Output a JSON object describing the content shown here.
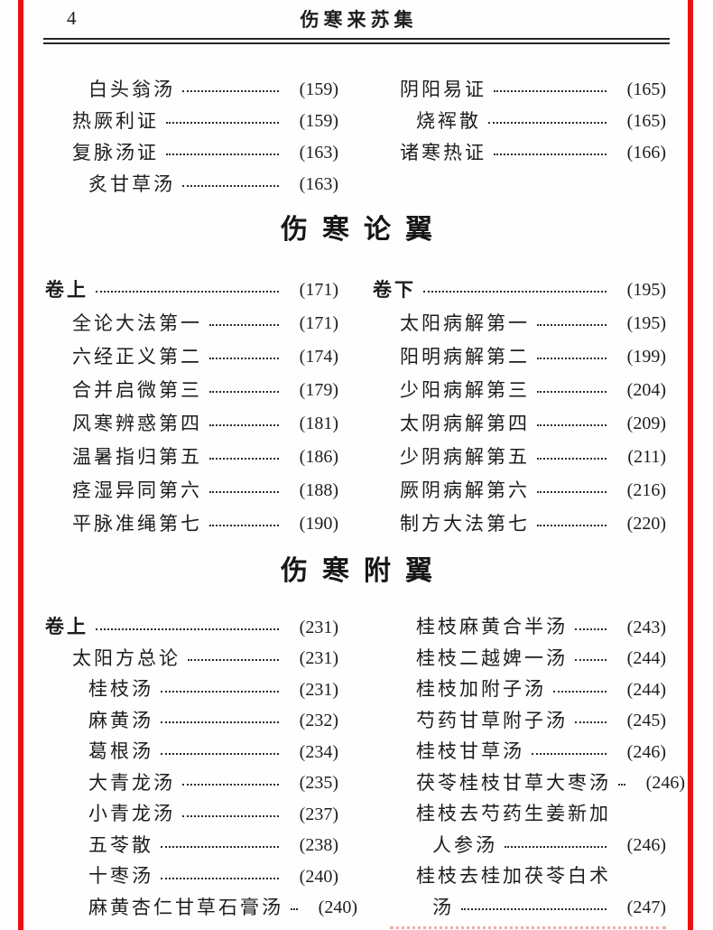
{
  "header": {
    "page_number": "4",
    "book_title": "伤寒来苏集"
  },
  "colors": {
    "binding_bar_red": "#ec1010",
    "text": "#1d1d1d",
    "rule": "#262626"
  },
  "sections": [
    {
      "heading": "",
      "left": [
        {
          "text": "白头翁汤",
          "page": "(159)"
        },
        {
          "text": "热厥利证",
          "page": "(159)"
        },
        {
          "text": "复脉汤证",
          "page": "(163)"
        },
        {
          "text": "炙甘草汤",
          "page": "(163)"
        }
      ],
      "right": [
        {
          "text": "阴阳易证",
          "page": "(165)"
        },
        {
          "text": "烧裈散",
          "page": "(165)"
        },
        {
          "text": "诸寒热证",
          "page": "(166)"
        }
      ]
    },
    {
      "heading": "伤寒论翼",
      "left": [
        {
          "text": "卷上",
          "page": "(171)"
        },
        {
          "text": "全论大法第一",
          "page": "(171)"
        },
        {
          "text": "六经正义第二",
          "page": "(174)"
        },
        {
          "text": "合并启微第三",
          "page": "(179)"
        },
        {
          "text": "风寒辨惑第四",
          "page": "(181)"
        },
        {
          "text": "温暑指归第五",
          "page": "(186)"
        },
        {
          "text": "痉湿异同第六",
          "page": "(188)"
        },
        {
          "text": "平脉准绳第七",
          "page": "(190)"
        }
      ],
      "right": [
        {
          "text": "卷下",
          "page": "(195)"
        },
        {
          "text": "太阳病解第一",
          "page": "(195)"
        },
        {
          "text": "阳明病解第二",
          "page": "(199)"
        },
        {
          "text": "少阳病解第三",
          "page": "(204)"
        },
        {
          "text": "太阴病解第四",
          "page": "(209)"
        },
        {
          "text": "少阴病解第五",
          "page": "(211)"
        },
        {
          "text": "厥阴病解第六",
          "page": "(216)"
        },
        {
          "text": "制方大法第七",
          "page": "(220)"
        }
      ]
    },
    {
      "heading": "伤寒附翼",
      "left": [
        {
          "text": "卷上",
          "page": "(231)"
        },
        {
          "text": "太阳方总论",
          "page": "(231)"
        },
        {
          "text": "桂枝汤",
          "page": "(231)"
        },
        {
          "text": "麻黄汤",
          "page": "(232)"
        },
        {
          "text": "葛根汤",
          "page": "(234)"
        },
        {
          "text": "大青龙汤",
          "page": "(235)"
        },
        {
          "text": "小青龙汤",
          "page": "(237)"
        },
        {
          "text": "五苓散",
          "page": "(238)"
        },
        {
          "text": "十枣汤",
          "page": "(240)"
        },
        {
          "text": "麻黄杏仁甘草石膏汤",
          "page": "(240)"
        }
      ],
      "right": [
        {
          "text": "桂枝麻黄合半汤",
          "page": "(243)"
        },
        {
          "text": "桂枝二越婢一汤",
          "page": "(244)"
        },
        {
          "text": "桂枝加附子汤",
          "page": "(244)"
        },
        {
          "text": "芍药甘草附子汤",
          "page": "(245)"
        },
        {
          "text": "桂枝甘草汤",
          "page": "(246)"
        },
        {
          "text": "茯苓桂枝甘草大枣汤",
          "page": "(246)"
        },
        {
          "text": "桂枝去芍药生姜新加",
          "page": ""
        },
        {
          "text": "人参汤",
          "page": "(246)"
        },
        {
          "text": "桂枝去桂加茯苓白术",
          "page": ""
        },
        {
          "text": "汤",
          "page": "(247)"
        }
      ]
    }
  ]
}
